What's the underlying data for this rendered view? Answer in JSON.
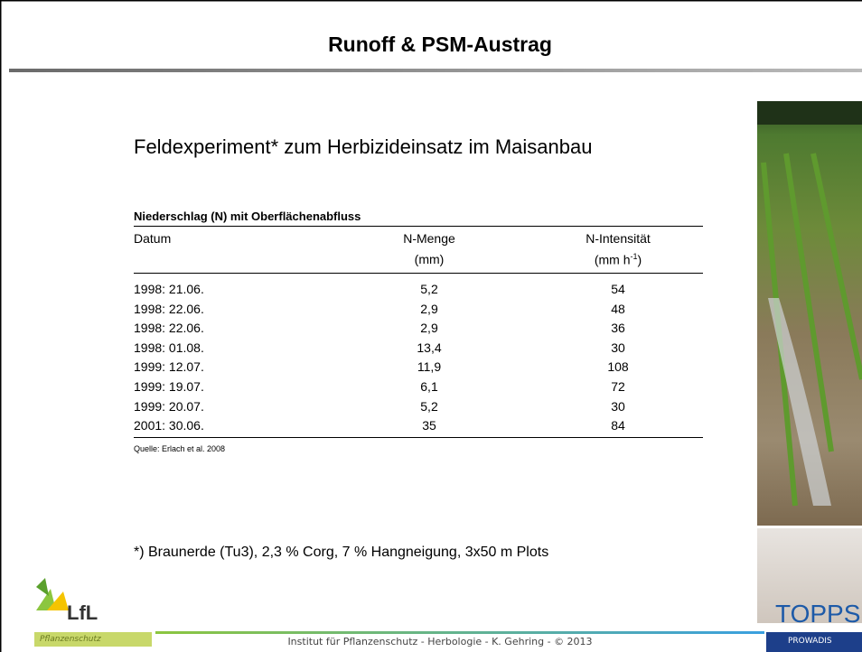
{
  "slide": {
    "title": "Runoff & PSM-Austrag",
    "subtitle": "Feldexperiment* zum Herbizideinsatz im Maisanbau",
    "table": {
      "caption": "Niederschlag (N) mit Oberflächenabfluss",
      "columns": [
        {
          "label": "Datum"
        },
        {
          "label": "N-Menge",
          "unit": "(mm)"
        },
        {
          "label": "N-Intensität",
          "unit": "(mm h",
          "unit_sup": "-1",
          "unit_end": ")"
        }
      ],
      "rows": [
        [
          "1998: 21.06.",
          "5,2",
          "54"
        ],
        [
          "1998: 22.06.",
          "2,9",
          "48"
        ],
        [
          "1998: 22.06.",
          "2,9",
          "36"
        ],
        [
          "1998: 01.08.",
          "13,4",
          "30"
        ],
        [
          "1999: 12.07.",
          "11,9",
          "108"
        ],
        [
          "1999: 19.07.",
          "6,1",
          "72"
        ],
        [
          "1999: 20.07.",
          "5,2",
          "30"
        ],
        [
          "2001: 30.06.",
          "35",
          "84"
        ]
      ],
      "source": "Quelle: Erlach et al. 2008"
    },
    "footnote": "*) Braunerde (Tu3), 2,3 % Corg, 7 % Hangneigung, 3x50 m Plots",
    "footer": "Institut für Pflanzenschutz  -  Herbologie  -  K. Gehring  -  © 2013",
    "logos": {
      "left": "LfL",
      "left_sub": "Pflanzenschutz",
      "right": "TOPPS",
      "right_sub": "PROWADIS"
    }
  }
}
